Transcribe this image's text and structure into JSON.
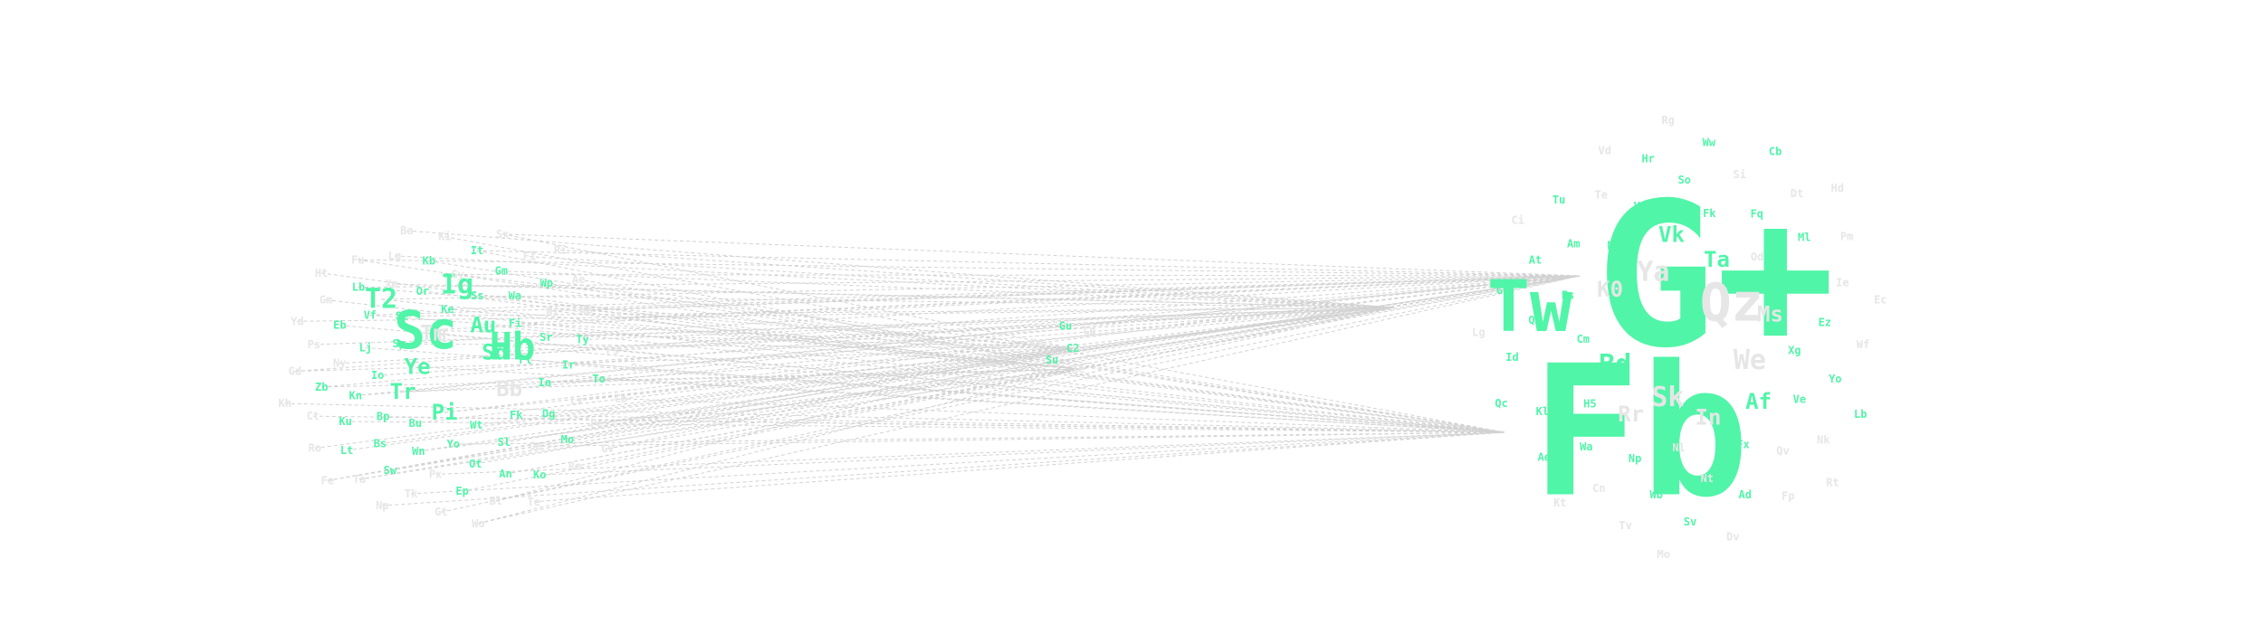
{
  "colors": {
    "active": "#50f5a8",
    "inactive": "#e6e6e6",
    "link": "#d2d2d2",
    "background": "#ffffff"
  },
  "clusters": {
    "left": [
      [
        "Sc",
        5,
        1
      ],
      [
        "Hb",
        4,
        1
      ],
      [
        "Ig",
        3,
        1
      ],
      [
        "T2",
        3,
        1
      ],
      [
        "Ye",
        2,
        1
      ],
      [
        "Sd",
        2,
        1
      ],
      [
        "Pi",
        2,
        1
      ],
      [
        "Tm",
        2,
        0
      ],
      [
        "Bb",
        2,
        0
      ],
      [
        "Tr",
        2,
        1
      ],
      [
        "Au",
        2,
        1
      ],
      [
        "Wt",
        1,
        1
      ],
      [
        "Sp",
        1,
        1
      ],
      [
        "Ft",
        1,
        1
      ],
      [
        "Bu",
        1,
        1
      ],
      [
        "Ke",
        1,
        1
      ],
      [
        "Fk",
        1,
        1
      ],
      [
        "Io",
        1,
        1
      ],
      [
        "Fi",
        1,
        1
      ],
      [
        "Yo",
        1,
        1
      ],
      [
        "Se",
        1,
        1
      ],
      [
        "Ia",
        1,
        1
      ],
      [
        "Bp",
        1,
        1
      ],
      [
        "Ss",
        1,
        1
      ],
      [
        "Sl",
        1,
        1
      ],
      [
        "Lj",
        1,
        1
      ],
      [
        "Sr",
        1,
        1
      ],
      [
        "Wn",
        1,
        1
      ],
      [
        "Or",
        1,
        1
      ],
      [
        "Dg",
        1,
        1
      ],
      [
        "Kn",
        1,
        1
      ],
      [
        "Wa",
        1,
        1
      ],
      [
        "Ot",
        1,
        1
      ],
      [
        "Vf",
        1,
        1
      ],
      [
        "Ir",
        1,
        1
      ],
      [
        "Bs",
        1,
        1
      ],
      [
        "Gy",
        1,
        0
      ],
      [
        "Go",
        1,
        0
      ],
      [
        "Ny",
        1,
        0
      ],
      [
        "Wi",
        1,
        0
      ],
      [
        "Px",
        1,
        0
      ],
      [
        "Xa",
        1,
        0
      ],
      [
        "Lx",
        1,
        0
      ],
      [
        "Ku",
        1,
        1
      ],
      [
        "Gm",
        1,
        1
      ],
      [
        "An",
        1,
        1
      ],
      [
        "Eb",
        1,
        1
      ],
      [
        "Ty",
        1,
        1
      ],
      [
        "Sw",
        1,
        1
      ],
      [
        "Kb",
        1,
        1
      ],
      [
        "Mo",
        1,
        1
      ],
      [
        "Zb",
        1,
        1
      ],
      [
        "Wp",
        1,
        1
      ],
      [
        "Ep",
        1,
        1
      ],
      [
        "Lb",
        1,
        1
      ],
      [
        "To",
        1,
        1
      ],
      [
        "Lt",
        1,
        1
      ],
      [
        "It",
        1,
        1
      ],
      [
        "Ko",
        1,
        1
      ],
      [
        "Ps",
        1,
        0
      ],
      [
        "Hp",
        1,
        0
      ],
      [
        "Tk",
        1,
        0
      ],
      [
        "Lg",
        1,
        0
      ],
      [
        "Pe",
        1,
        0
      ],
      [
        "Ct",
        1,
        0
      ],
      [
        "Fi",
        1,
        0
      ],
      [
        "Bl",
        1,
        0
      ],
      [
        "Gm",
        1,
        0
      ],
      [
        "Fs",
        1,
        0
      ],
      [
        "Ta",
        1,
        0
      ],
      [
        "Ki",
        1,
        0
      ],
      [
        "Re",
        1,
        0
      ],
      [
        "Gd",
        1,
        0
      ],
      [
        "Ae",
        1,
        0
      ],
      [
        "Gt",
        1,
        0
      ],
      [
        "Fu",
        1,
        0
      ],
      [
        "Cb",
        1,
        0
      ],
      [
        "Ro",
        1,
        0
      ],
      [
        "Sx",
        1,
        0
      ],
      [
        "Te",
        1,
        0
      ],
      [
        "Yd",
        1,
        0
      ],
      [
        "Al",
        1,
        0
      ],
      [
        "Np",
        1,
        0
      ],
      [
        "Ba",
        1,
        0
      ],
      [
        "Gv",
        1,
        0
      ],
      [
        "Kh",
        1,
        0
      ],
      [
        "Ri",
        1,
        0
      ],
      [
        "Wo",
        1,
        0
      ],
      [
        "Ht",
        1,
        0
      ],
      [
        "Qa",
        1,
        0
      ],
      [
        "Fe",
        1,
        0
      ]
    ],
    "center": [
      [
        "C2",
        1,
        1
      ],
      [
        "Su",
        1,
        1
      ],
      [
        "Gu",
        1,
        1
      ],
      [
        "Xe",
        1,
        0
      ],
      [
        "Ke",
        1,
        0
      ],
      [
        "Lp",
        1,
        0
      ]
    ],
    "right": [
      [
        "G+",
        12,
        1
      ],
      [
        "Fb",
        10,
        1
      ],
      [
        "Tw",
        6,
        1
      ],
      [
        "Qz",
        5,
        0
      ],
      [
        "Sk",
        3,
        0
      ],
      [
        "Ya",
        3,
        0
      ],
      [
        "We",
        3,
        0
      ],
      [
        "Bd",
        3,
        1
      ],
      [
        "Ta",
        2,
        1
      ],
      [
        "In",
        2,
        0
      ],
      [
        "K0",
        2,
        0
      ],
      [
        "Ms",
        2,
        0
      ],
      [
        "Rr",
        2,
        0
      ],
      [
        "Vk",
        2,
        1
      ],
      [
        "Af",
        2,
        1
      ],
      [
        "Cm",
        1,
        1
      ],
      [
        "Od",
        1,
        0
      ],
      [
        "Nl",
        1,
        0
      ],
      [
        "My",
        1,
        1
      ],
      [
        "Xg",
        1,
        1
      ],
      [
        "H5",
        1,
        1
      ],
      [
        "Fk",
        1,
        1
      ],
      [
        "Fx",
        1,
        1
      ],
      [
        "Fs",
        1,
        1
      ],
      [
        "Fr",
        1,
        1
      ],
      [
        "Np",
        1,
        1
      ],
      [
        "Vn",
        1,
        1
      ],
      [
        "Ve",
        1,
        1
      ],
      [
        "Cr",
        1,
        1
      ],
      [
        "Fq",
        1,
        1
      ],
      [
        "Nt",
        1,
        0
      ],
      [
        "Am",
        1,
        1
      ],
      [
        "Ez",
        1,
        1
      ],
      [
        "Wa",
        1,
        1
      ],
      [
        "So",
        1,
        1
      ],
      [
        "Qv",
        1,
        0
      ],
      [
        "Qo",
        1,
        1
      ],
      [
        "Ml",
        1,
        1
      ],
      [
        "Wb",
        1,
        1
      ],
      [
        "Te",
        1,
        0
      ],
      [
        "Yo",
        1,
        1
      ],
      [
        "Kl",
        1,
        1
      ],
      [
        "Si",
        1,
        0
      ],
      [
        "Ad",
        1,
        1
      ],
      [
        "At",
        1,
        1
      ],
      [
        "Ie",
        1,
        0
      ],
      [
        "Cn",
        1,
        0
      ],
      [
        "Hr",
        1,
        1
      ],
      [
        "Nk",
        1,
        0
      ],
      [
        "Id",
        1,
        1
      ],
      [
        "Dt",
        1,
        0
      ],
      [
        "Sv",
        1,
        1
      ],
      [
        "Tu",
        1,
        1
      ],
      [
        "Wf",
        1,
        0
      ],
      [
        "Ae",
        1,
        1
      ],
      [
        "Ww",
        1,
        1
      ],
      [
        "Fp",
        1,
        0
      ],
      [
        "Gs",
        1,
        1
      ],
      [
        "Pm",
        1,
        0
      ],
      [
        "Tv",
        1,
        0
      ],
      [
        "Vd",
        1,
        0
      ],
      [
        "Lb",
        1,
        1
      ],
      [
        "Qc",
        1,
        1
      ],
      [
        "Cb",
        1,
        1
      ],
      [
        "Dv",
        1,
        0
      ],
      [
        "Ci",
        1,
        0
      ],
      [
        "Ec",
        1,
        0
      ],
      [
        "Kt",
        1,
        0
      ],
      [
        "Rg",
        1,
        0
      ],
      [
        "Rt",
        1,
        0
      ],
      [
        "Lg",
        1,
        0
      ],
      [
        "Hd",
        1,
        0
      ],
      [
        "Mo",
        1,
        0
      ]
    ]
  }
}
